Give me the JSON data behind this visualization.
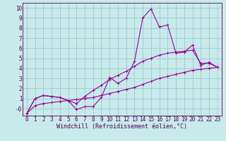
{
  "title": "",
  "xlabel": "Windchill (Refroidissement éolien,°C)",
  "ylabel": "",
  "bg_color": "#c8eaea",
  "grid_color": "#a0d0d0",
  "line_color": "#990099",
  "x": [
    0,
    1,
    2,
    3,
    4,
    5,
    6,
    7,
    8,
    9,
    10,
    11,
    12,
    13,
    14,
    15,
    16,
    17,
    18,
    19,
    20,
    21,
    22,
    23
  ],
  "y_main": [
    -0.5,
    1.0,
    1.3,
    1.2,
    1.1,
    0.8,
    -0.1,
    0.2,
    0.2,
    1.1,
    3.1,
    2.5,
    3.0,
    4.7,
    9.0,
    9.9,
    8.1,
    8.3,
    5.5,
    5.6,
    6.3,
    4.3,
    4.6,
    4.1
  ],
  "y_upper": [
    -0.5,
    1.0,
    1.3,
    1.2,
    1.1,
    0.8,
    0.5,
    1.2,
    1.8,
    2.3,
    2.9,
    3.3,
    3.7,
    4.2,
    4.7,
    5.0,
    5.3,
    5.5,
    5.6,
    5.7,
    5.8,
    4.5,
    4.5,
    4.1
  ],
  "y_lower": [
    -0.5,
    0.3,
    0.5,
    0.6,
    0.7,
    0.8,
    0.9,
    1.0,
    1.1,
    1.3,
    1.5,
    1.7,
    1.9,
    2.1,
    2.4,
    2.7,
    3.0,
    3.2,
    3.4,
    3.6,
    3.8,
    3.9,
    4.0,
    4.1
  ],
  "xlim": [
    -0.5,
    23.5
  ],
  "ylim": [
    -0.7,
    10.5
  ],
  "yticks": [
    0,
    1,
    2,
    3,
    4,
    5,
    6,
    7,
    8,
    9,
    10
  ],
  "ytick_labels": [
    "-0",
    "1",
    "2",
    "3",
    "4",
    "5",
    "6",
    "7",
    "8",
    "9",
    "10"
  ],
  "xticks": [
    0,
    1,
    2,
    3,
    4,
    5,
    6,
    7,
    8,
    9,
    10,
    11,
    12,
    13,
    14,
    15,
    16,
    17,
    18,
    19,
    20,
    21,
    22,
    23
  ],
  "tick_fontsize": 5.5,
  "xlabel_fontsize": 6.0
}
